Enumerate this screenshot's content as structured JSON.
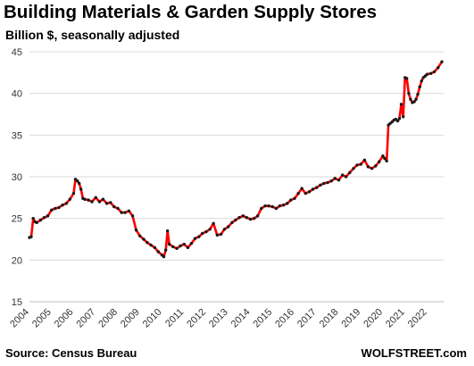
{
  "chart_data": {
    "type": "line",
    "title": "Building Materials & Garden Supply Stores",
    "subtitle": "Billion $, seasonally adjusted",
    "xlabel": "",
    "ylabel": "",
    "xlim": [
      2004.0,
      2022.75
    ],
    "ylim": [
      15,
      45
    ],
    "yticks": [
      15,
      20,
      25,
      30,
      35,
      40,
      45
    ],
    "xticks": [
      "2004",
      "2005",
      "2006",
      "2007",
      "2008",
      "2009",
      "2010",
      "2011",
      "2012",
      "2013",
      "2014",
      "2015",
      "2016",
      "2017",
      "2018",
      "2019",
      "2020",
      "2021",
      "2022"
    ],
    "grid": "horizontal",
    "line_color": "#ff0000",
    "marker_color": "#1a1a1a",
    "series": [
      {
        "x": [
          2004.0,
          2004.08,
          2004.17,
          2004.25,
          2004.33,
          2004.5,
          2004.67,
          2004.83,
          2005.0,
          2005.17,
          2005.33,
          2005.5,
          2005.67,
          2005.83,
          2006.0,
          2006.08,
          2006.17,
          2006.25,
          2006.33,
          2006.42,
          2006.5,
          2006.67,
          2006.83,
          2007.0,
          2007.17,
          2007.33,
          2007.5,
          2007.67,
          2007.83,
          2008.0,
          2008.17,
          2008.33,
          2008.5,
          2008.67,
          2008.83,
          2009.0,
          2009.17,
          2009.33,
          2009.5,
          2009.67,
          2009.83,
          2010.0,
          2010.08,
          2010.17,
          2010.25,
          2010.33,
          2010.5,
          2010.67,
          2010.83,
          2011.0,
          2011.17,
          2011.33,
          2011.5,
          2011.67,
          2011.83,
          2012.0,
          2012.17,
          2012.33,
          2012.5,
          2012.67,
          2012.83,
          2013.0,
          2013.17,
          2013.33,
          2013.5,
          2013.67,
          2013.83,
          2014.0,
          2014.17,
          2014.33,
          2014.5,
          2014.67,
          2014.83,
          2015.0,
          2015.17,
          2015.33,
          2015.5,
          2015.67,
          2015.83,
          2016.0,
          2016.17,
          2016.33,
          2016.5,
          2016.67,
          2016.83,
          2017.0,
          2017.17,
          2017.33,
          2017.5,
          2017.67,
          2017.83,
          2018.0,
          2018.17,
          2018.33,
          2018.5,
          2018.67,
          2018.83,
          2019.0,
          2019.17,
          2019.33,
          2019.5,
          2019.67,
          2019.83,
          2020.0,
          2020.08,
          2020.17,
          2020.25,
          2020.33,
          2020.42,
          2020.5,
          2020.58,
          2020.67,
          2020.75,
          2020.83,
          2020.92,
          2021.0,
          2021.08,
          2021.17,
          2021.25,
          2021.33,
          2021.42,
          2021.5,
          2021.58,
          2021.67,
          2021.75,
          2021.83,
          2021.92,
          2022.0,
          2022.17,
          2022.33,
          2022.5,
          2022.67
        ],
        "values": [
          22.7,
          22.8,
          25.0,
          24.6,
          24.5,
          24.8,
          25.1,
          25.3,
          26.0,
          26.2,
          26.3,
          26.6,
          26.8,
          27.3,
          28.0,
          29.7,
          29.5,
          29.2,
          28.5,
          27.4,
          27.3,
          27.2,
          27.0,
          27.5,
          27.0,
          27.3,
          26.8,
          26.9,
          26.4,
          26.2,
          25.7,
          25.7,
          25.9,
          25.3,
          23.6,
          22.9,
          22.5,
          22.1,
          21.8,
          21.5,
          21.0,
          20.6,
          20.4,
          21.2,
          23.5,
          21.9,
          21.6,
          21.4,
          21.7,
          21.9,
          21.5,
          22.0,
          22.6,
          22.8,
          23.2,
          23.4,
          23.7,
          24.4,
          23.0,
          23.1,
          23.7,
          24.0,
          24.5,
          24.8,
          25.1,
          25.3,
          25.1,
          24.9,
          25.0,
          25.3,
          26.2,
          26.5,
          26.5,
          26.4,
          26.2,
          26.5,
          26.6,
          26.8,
          27.2,
          27.4,
          28.0,
          28.6,
          28.0,
          28.2,
          28.5,
          28.7,
          29.0,
          29.2,
          29.3,
          29.5,
          29.8,
          29.6,
          30.2,
          30.0,
          30.5,
          31.0,
          31.4,
          31.5,
          32.0,
          31.2,
          31.0,
          31.3,
          31.8,
          32.5,
          32.2,
          31.9,
          36.2,
          36.4,
          36.6,
          36.8,
          36.9,
          36.7,
          37.0,
          38.7,
          37.2,
          41.9,
          41.8,
          40.0,
          39.3,
          38.9,
          39.0,
          39.3,
          39.9,
          40.8,
          41.5,
          41.9,
          42.1,
          42.3,
          42.4,
          42.6,
          43.1,
          43.8
        ]
      }
    ]
  },
  "footer": {
    "source": "Source: Census Bureau",
    "brand": "WOLFSTREET.com"
  }
}
